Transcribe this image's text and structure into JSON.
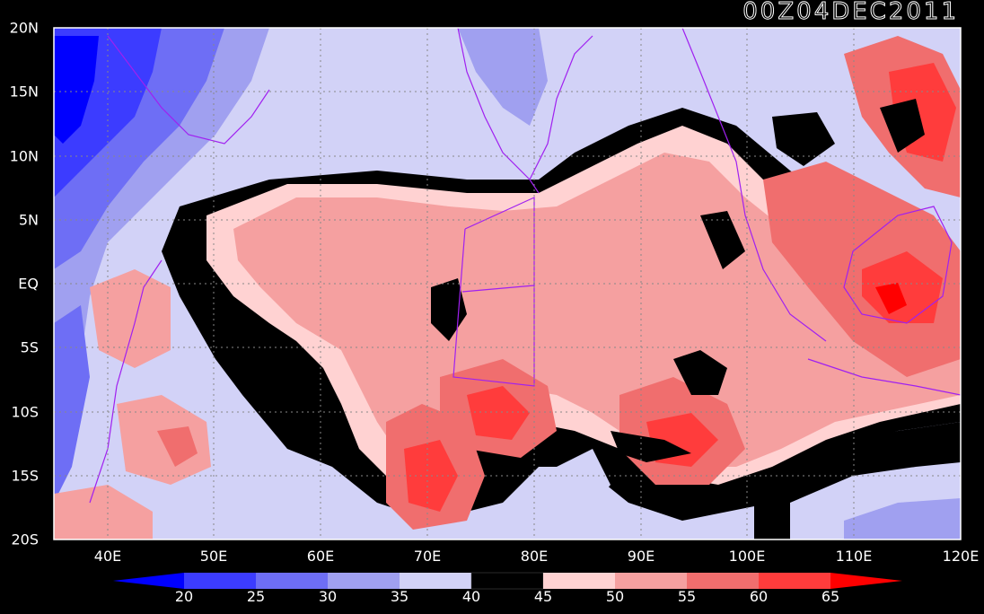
{
  "map": {
    "timestamp": "00Z04DEC2011",
    "lat_labels": [
      "20N",
      "15N",
      "10N",
      "5N",
      "EQ",
      "5S",
      "10S",
      "15S",
      "20S"
    ],
    "lon_labels": [
      "40E",
      "50E",
      "60E",
      "70E",
      "80E",
      "90E",
      "100E",
      "110E",
      "120E"
    ],
    "colorbar": {
      "ticks": [
        "20",
        "25",
        "30",
        "35",
        "40",
        "45",
        "50",
        "55",
        "60",
        "65"
      ],
      "colors": [
        "#0000ff",
        "#3c3cff",
        "#6e6ef5",
        "#a0a0f0",
        "#d2d2f7",
        "#000000",
        "#ffd2d2",
        "#f5a0a0",
        "#f06e6e",
        "#ff3c3c",
        "#ff0000"
      ]
    },
    "palette": {
      "below_20": "#0000ff",
      "c20_25": "#3c3cff",
      "c25_30": "#6e6ef5",
      "c30_35": "#a0a0f0",
      "c35_40": "#d2d2f7",
      "c40_45": "#000000",
      "c45_50": "#ffd2d2",
      "c50_55": "#f5a0a0",
      "c55_60": "#f06e6e",
      "c60_65": "#ff3c3c",
      "above_65": "#ff0000",
      "coastline": "#a020f0"
    }
  }
}
